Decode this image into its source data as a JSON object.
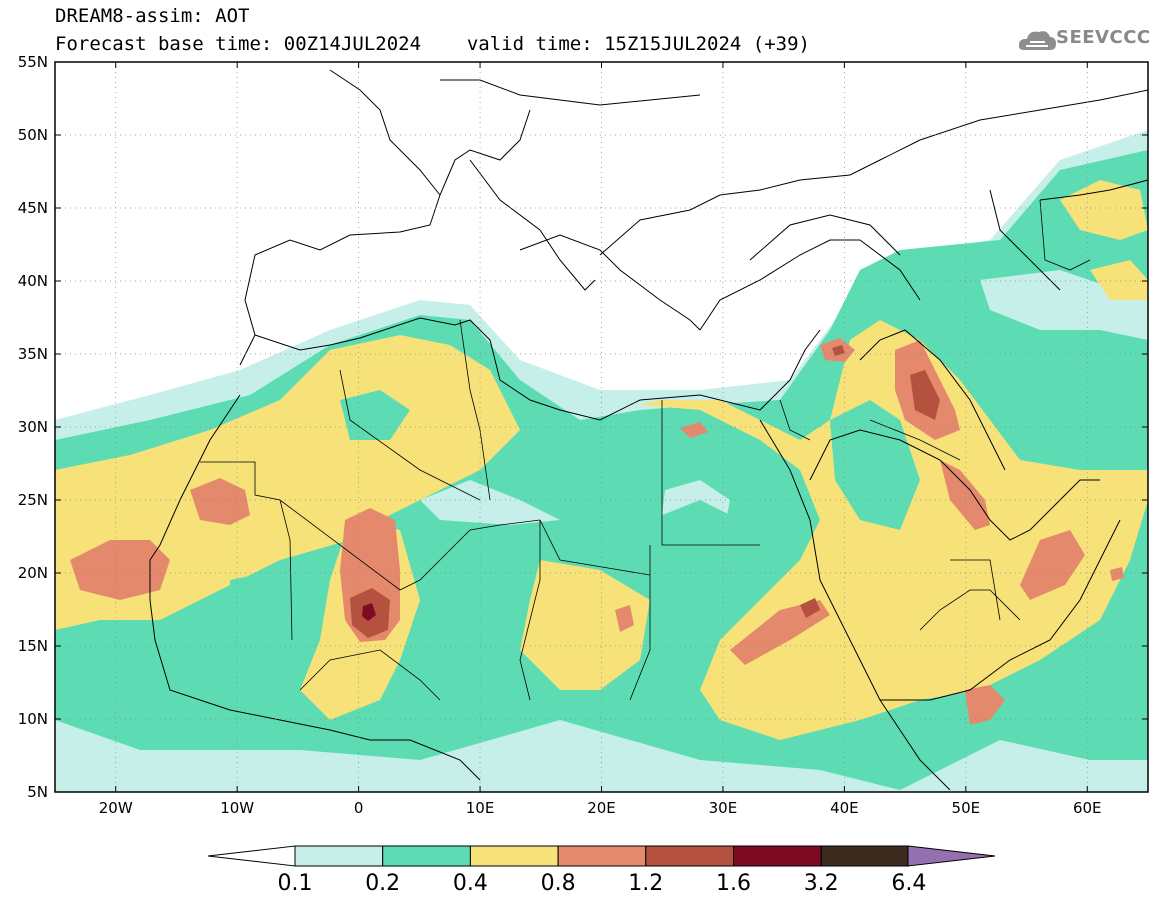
{
  "header": {
    "title_line": "DREAM8-assim: AOT",
    "base_time": "Forecast base time: 00Z14JUL2024",
    "valid_time": "valid time: 15Z15JUL2024 (+39)"
  },
  "logo": {
    "text": "SEEVCCC",
    "icon": "cloud-logo-icon"
  },
  "map": {
    "lat_labels": [
      "55N",
      "50N",
      "45N",
      "40N",
      "35N",
      "30N",
      "25N",
      "20N",
      "15N",
      "10N",
      "5N"
    ],
    "lon_labels": [
      "20W",
      "10W",
      "0",
      "10E",
      "20E",
      "30E",
      "40E",
      "50E",
      "60E"
    ],
    "lat_range": [
      5,
      55
    ],
    "lon_range": [
      -25,
      65
    ],
    "grid": "dotted"
  },
  "colorbar": {
    "labels": [
      "0.1",
      "0.2",
      "0.4",
      "0.8",
      "1.2",
      "1.6",
      "3.2",
      "6.4"
    ],
    "colors": [
      "#c6efe9",
      "#5ddcb4",
      "#f7e27a",
      "#e4896c",
      "#b5513f",
      "#7f0a24",
      "#3d2a1e",
      "#9470b0"
    ]
  }
}
